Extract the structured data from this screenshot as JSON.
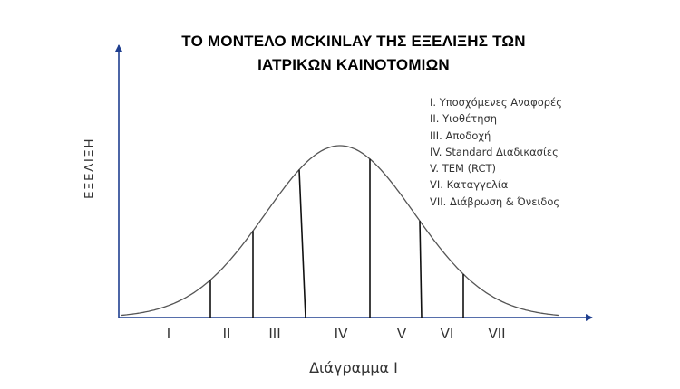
{
  "title": {
    "line1": "ΤΟ ΜΟΝΤΕΛΟ MCKINLAY ΤΗΣ ΕΞΕΛΙΞΗΣ ΤΩΝ",
    "line2": "ΙΑΤΡΙΚΩΝ ΚΑΙΝΟΤΟΜΙΩΝ"
  },
  "y_axis_label": "ΕΞΕΛΙΞΗ",
  "legend": [
    "I. Υποσχόμενες Αναφορές",
    "II. Υιοθέτηση",
    "III. Αποδοχή",
    "IV. Standard Διαδικασίες",
    "V. ΤΕΜ (RCT)",
    "VI. Καταγγελία",
    "VII. Διάβρωση & Όνειδος"
  ],
  "stages": [
    "I",
    "II",
    "III",
    "IV",
    "V",
    "VI",
    "VII"
  ],
  "caption": "Διάγραμμα Ι",
  "colors": {
    "axis": "#1f3f8f",
    "curve": "#555555",
    "divider": "#111111",
    "text": "#333333"
  }
}
